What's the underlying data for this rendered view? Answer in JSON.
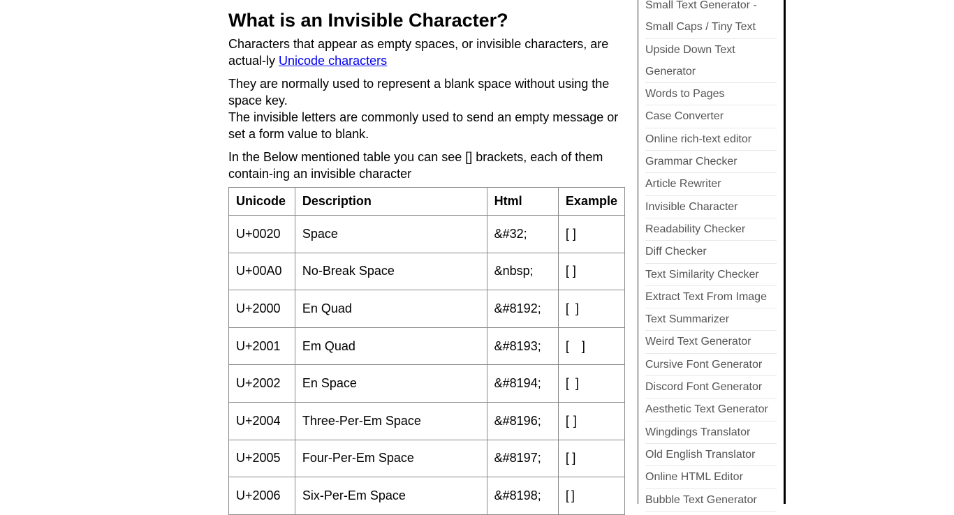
{
  "heading": "What is an Invisible Character?",
  "p1_text": "Characters that appear as empty spaces, or invisible characters, are actual-ly ",
  "p1_link": "Unicode characters",
  "p2_line1": "They are normally used to represent a blank space without using the space key.",
  "p2_line2": "The invisible letters are commonly used to send an empty message or set a form value to blank.",
  "p3": "In the Below mentioned table you can see [] brackets, each of them contain-ing an invisible character",
  "table": {
    "headers": [
      "Unicode",
      "Description",
      "Html",
      "Example"
    ],
    "rows": [
      [
        "U+0020",
        "Space",
        "&#32;",
        "[ ]"
      ],
      [
        "U+00A0",
        "No-Break Space",
        "&nbsp;",
        "[ ]"
      ],
      [
        "U+2000",
        "En Quad",
        "&#8192;",
        "[ ]"
      ],
      [
        "U+2001",
        "Em Quad",
        "&#8193;",
        "[ ]"
      ],
      [
        "U+2002",
        "En Space",
        "&#8194;",
        "[ ]"
      ],
      [
        "U+2004",
        "Three-Per-Em Space",
        "&#8196;",
        "[ ]"
      ],
      [
        "U+2005",
        "Four-Per-Em Space",
        "&#8197;",
        "[ ]"
      ],
      [
        "U+2006",
        "Six-Per-Em Space",
        "&#8198;",
        "[ ]"
      ]
    ]
  },
  "sidebar": {
    "items": [
      [
        "Small Text Generator -",
        "Small Caps / Tiny Text"
      ],
      [
        "Upside Down Text",
        "Generator"
      ],
      [
        "Words to Pages"
      ],
      [
        "Case Converter"
      ],
      [
        "Online rich-text editor"
      ],
      [
        "Grammar Checker"
      ],
      [
        "Article Rewriter"
      ],
      [
        "Invisible Character"
      ],
      [
        "Readability Checker"
      ],
      [
        "Diff Checker"
      ],
      [
        "Text Similarity Checker"
      ],
      [
        "Extract Text From Image"
      ],
      [
        "Text Summarizer"
      ],
      [
        "Weird Text Generator"
      ],
      [
        "Cursive Font Generator"
      ],
      [
        "Discord Font Generator"
      ],
      [
        "Aesthetic Text Generator"
      ],
      [
        "Wingdings Translator"
      ],
      [
        "Old English Translator"
      ],
      [
        "Online HTML Editor"
      ],
      [
        "Bubble Text Generator"
      ]
    ]
  }
}
